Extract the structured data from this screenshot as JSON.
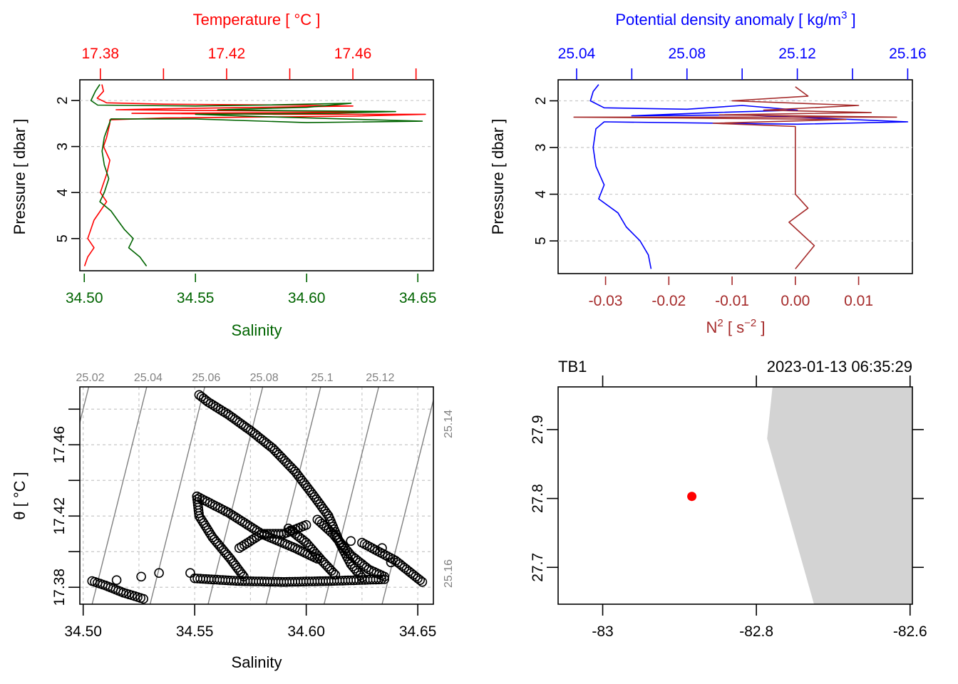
{
  "chart_data": [
    {
      "id": "profile-ts",
      "type": "line",
      "y_axis": {
        "label": "Pressure [ dbar ]",
        "ticks": [
          "2",
          "3",
          "4",
          "5"
        ],
        "range": [
          5.7,
          1.55
        ],
        "reversed": true
      },
      "bottom_axis": {
        "label": "Salinity",
        "ticks": [
          "34.50",
          "34.55",
          "34.60",
          "34.65"
        ],
        "range": [
          34.498,
          34.657
        ],
        "color": "#006400"
      },
      "top_axis": {
        "label": "Temperature [ °C ]",
        "ticks": [
          "17.38",
          "",
          "17.42",
          "",
          "17.46",
          ""
        ],
        "tick_values": [
          17.38,
          17.4,
          17.42,
          17.44,
          17.46,
          17.48
        ],
        "range": [
          17.3735,
          17.4855
        ],
        "color": "#ff0000"
      },
      "grid": "horizontal-dashed",
      "series": [
        {
          "name": "Temperature",
          "color": "#ff0000",
          "axis": "top",
          "points": [
            [
              17.3805,
              1.65
            ],
            [
              17.381,
              1.8
            ],
            [
              17.379,
              1.95
            ],
            [
              17.382,
              2.05
            ],
            [
              17.4,
              2.08
            ],
            [
              17.44,
              2.1
            ],
            [
              17.46,
              2.12
            ],
            [
              17.43,
              2.15
            ],
            [
              17.4,
              2.18
            ],
            [
              17.385,
              2.2
            ],
            [
              17.42,
              2.22
            ],
            [
              17.47,
              2.24
            ],
            [
              17.445,
              2.26
            ],
            [
              17.39,
              2.28
            ],
            [
              17.435,
              2.3
            ],
            [
              17.483,
              2.3
            ],
            [
              17.46,
              2.34
            ],
            [
              17.4,
              2.38
            ],
            [
              17.383,
              2.42
            ],
            [
              17.383,
              2.5
            ],
            [
              17.382,
              2.8
            ],
            [
              17.381,
              3.0
            ],
            [
              17.383,
              3.3
            ],
            [
              17.382,
              3.6
            ],
            [
              17.381,
              3.8
            ],
            [
              17.38,
              4.0
            ],
            [
              17.382,
              4.2
            ],
            [
              17.38,
              4.4
            ],
            [
              17.378,
              4.6
            ],
            [
              17.377,
              4.8
            ],
            [
              17.376,
              5.0
            ],
            [
              17.378,
              5.2
            ],
            [
              17.376,
              5.4
            ],
            [
              17.375,
              5.6
            ]
          ]
        },
        {
          "name": "Salinity",
          "color": "#006400",
          "axis": "bottom",
          "points": [
            [
              34.507,
              1.65
            ],
            [
              34.505,
              1.8
            ],
            [
              34.503,
              2.0
            ],
            [
              34.506,
              2.1
            ],
            [
              34.55,
              2.12
            ],
            [
              34.58,
              2.1
            ],
            [
              34.62,
              2.06
            ],
            [
              34.6,
              2.15
            ],
            [
              34.56,
              2.2
            ],
            [
              34.59,
              2.22
            ],
            [
              34.64,
              2.24
            ],
            [
              34.61,
              2.28
            ],
            [
              34.55,
              2.3
            ],
            [
              34.58,
              2.35
            ],
            [
              34.652,
              2.45
            ],
            [
              34.6,
              2.48
            ],
            [
              34.55,
              2.4
            ],
            [
              34.512,
              2.4
            ],
            [
              34.509,
              2.8
            ],
            [
              34.508,
              3.1
            ],
            [
              34.509,
              3.4
            ],
            [
              34.511,
              3.7
            ],
            [
              34.509,
              4.0
            ],
            [
              34.507,
              4.2
            ],
            [
              34.512,
              4.4
            ],
            [
              34.515,
              4.6
            ],
            [
              34.518,
              4.8
            ],
            [
              34.522,
              5.0
            ],
            [
              34.52,
              5.2
            ],
            [
              34.525,
              5.4
            ],
            [
              34.528,
              5.6
            ]
          ]
        }
      ]
    },
    {
      "id": "profile-density",
      "type": "line",
      "y_axis": {
        "label": "Pressure [ dbar ]",
        "ticks": [
          "2",
          "3",
          "4",
          "5"
        ],
        "range": [
          5.7,
          1.55
        ],
        "reversed": true
      },
      "top_axis": {
        "label": "Potential density anomaly [ kg/m³ ]",
        "label_main": "Potential density anomaly [ kg/m",
        "label_sup": "3",
        "label_end": " ]",
        "ticks": [
          "25.04",
          "",
          "25.08",
          "",
          "25.12",
          "",
          "25.16"
        ],
        "tick_values": [
          25.04,
          25.06,
          25.08,
          25.1,
          25.12,
          25.14,
          25.16
        ],
        "range": [
          25.0333,
          25.1617
        ],
        "color": "#0000ff"
      },
      "bottom_axis": {
        "label": "N² [ s⁻² ]",
        "label_main": "N",
        "label_sup": "2",
        "label_mid": " [ s",
        "label_sup2": "−2",
        "label_end": " ]",
        "ticks": [
          "-0.03",
          "-0.02",
          "-0.01",
          "0.00",
          "0.01"
        ],
        "tick_values": [
          -0.03,
          -0.02,
          -0.01,
          0.0,
          0.01
        ],
        "range": [
          -0.0375,
          0.0185
        ],
        "color": "#a52a2a"
      },
      "grid": "horizontal-dashed",
      "series": [
        {
          "name": "Potential density anomaly",
          "color": "#0000ff",
          "axis": "top",
          "points": [
            [
              25.048,
              1.65
            ],
            [
              25.046,
              1.8
            ],
            [
              25.045,
              2.0
            ],
            [
              25.05,
              2.15
            ],
            [
              25.08,
              2.18
            ],
            [
              25.1,
              2.1
            ],
            [
              25.12,
              2.2
            ],
            [
              25.09,
              2.25
            ],
            [
              25.06,
              2.32
            ],
            [
              25.1,
              2.3
            ],
            [
              25.16,
              2.45
            ],
            [
              25.12,
              2.5
            ],
            [
              25.05,
              2.45
            ],
            [
              25.047,
              2.6
            ],
            [
              25.046,
              3.0
            ],
            [
              25.047,
              3.4
            ],
            [
              25.05,
              3.8
            ],
            [
              25.048,
              4.1
            ],
            [
              25.055,
              4.4
            ],
            [
              25.058,
              4.7
            ],
            [
              25.063,
              5.0
            ],
            [
              25.066,
              5.3
            ],
            [
              25.067,
              5.6
            ]
          ]
        },
        {
          "name": "N²",
          "color": "#a52a2a",
          "axis": "bottom",
          "points": [
            [
              0.0,
              1.7
            ],
            [
              0.002,
              1.9
            ],
            [
              -0.01,
              2.0
            ],
            [
              0.01,
              2.1
            ],
            [
              -0.005,
              2.2
            ],
            [
              0.012,
              2.25
            ],
            [
              -0.012,
              2.3
            ],
            [
              0.016,
              2.35
            ],
            [
              -0.035,
              2.35
            ],
            [
              0.008,
              2.4
            ],
            [
              -0.013,
              2.48
            ],
            [
              0.0,
              2.55
            ],
            [
              0.0,
              3.0
            ],
            [
              0.0,
              3.5
            ],
            [
              0.0,
              4.0
            ],
            [
              0.002,
              4.3
            ],
            [
              -0.001,
              4.6
            ],
            [
              0.003,
              5.1
            ],
            [
              0.0,
              5.6
            ]
          ]
        }
      ]
    },
    {
      "id": "ts-diagram",
      "type": "scatter",
      "x_axis": {
        "label": "Salinity",
        "ticks": [
          "34.50",
          "34.55",
          "34.60",
          "34.65"
        ],
        "tick_values": [
          34.5,
          34.55,
          34.6,
          34.65
        ],
        "range": [
          34.4985,
          34.657
        ]
      },
      "y_axis": {
        "label": "θ [ °C ]",
        "ticks": [
          "17.38",
          "",
          "17.42",
          "",
          "17.46",
          ""
        ],
        "tick_values": [
          17.38,
          17.4,
          17.42,
          17.44,
          17.46,
          17.48
        ],
        "range": [
          17.3705,
          17.4925
        ]
      },
      "isopycnal_labels_top": [
        "25.02",
        "25.04",
        "25.06",
        "25.08",
        "25.1",
        "25.12"
      ],
      "isopycnal_labels_right": [
        "25.14",
        "25.16"
      ],
      "isopycnal_color": "#808080",
      "grid": "dashed",
      "series": [
        {
          "name": "θ-S",
          "color": "#000000",
          "marker": "open-circle",
          "segments": [
            [
              [
                34.504,
                17.3835
              ],
              [
                34.51,
                17.381
              ],
              [
                34.518,
                17.377
              ],
              [
                34.527,
                17.3735
              ]
            ],
            [
              [
                34.552,
                17.488
              ],
              [
                34.556,
                17.484
              ],
              [
                34.565,
                17.477
              ],
              [
                34.575,
                17.468
              ],
              [
                34.585,
                17.458
              ],
              [
                34.595,
                17.445
              ],
              [
                34.603,
                17.432
              ],
              [
                34.61,
                17.42
              ],
              [
                34.615,
                17.405
              ],
              [
                34.62,
                17.393
              ],
              [
                34.625,
                17.3855
              ]
            ],
            [
              [
                34.551,
                17.431
              ],
              [
                34.552,
                17.42
              ],
              [
                34.558,
                17.408
              ],
              [
                34.566,
                17.396
              ],
              [
                34.572,
                17.386
              ]
            ],
            [
              [
                34.551,
                17.431
              ],
              [
                34.565,
                17.422
              ],
              [
                34.58,
                17.41
              ],
              [
                34.595,
                17.402
              ],
              [
                34.605,
                17.396
              ]
            ],
            [
              [
                34.55,
                17.385
              ],
              [
                34.57,
                17.3835
              ],
              [
                34.59,
                17.383
              ],
              [
                34.61,
                17.3835
              ],
              [
                34.635,
                17.3845
              ]
            ],
            [
              [
                34.605,
                17.418
              ],
              [
                34.612,
                17.41
              ],
              [
                34.62,
                17.398
              ],
              [
                34.628,
                17.39
              ],
              [
                34.635,
                17.386
              ]
            ],
            [
              [
                34.592,
                17.413
              ],
              [
                34.6,
                17.405
              ],
              [
                34.607,
                17.395
              ],
              [
                34.613,
                17.387
              ]
            ],
            [
              [
                34.625,
                17.405
              ],
              [
                34.64,
                17.395
              ],
              [
                34.652,
                17.383
              ]
            ],
            [
              [
                34.57,
                17.402
              ],
              [
                34.58,
                17.41
              ],
              [
                34.59,
                17.41
              ],
              [
                34.6,
                17.415
              ]
            ]
          ],
          "isolated": [
            [
              34.515,
              17.384
            ],
            [
              34.526,
              17.386
            ],
            [
              34.534,
              17.388
            ],
            [
              34.548,
              17.388
            ],
            [
              34.634,
              17.402
            ],
            [
              34.62,
              17.406
            ],
            [
              34.638,
              17.394
            ]
          ]
        }
      ]
    },
    {
      "id": "station-map",
      "type": "scatter",
      "title_left": "TB1",
      "title_right": "2023-01-13 06:35:29",
      "x_axis": {
        "label": "",
        "ticks": [
          "-83",
          "-82.8",
          "-82.6"
        ],
        "tick_values": [
          -83.0,
          -82.8,
          -82.6
        ],
        "range": [
          -83.058,
          -82.597
        ]
      },
      "y_axis": {
        "label": "",
        "ticks": [
          "27.7",
          "27.8",
          "27.9"
        ],
        "tick_values": [
          27.7,
          27.8,
          27.9
        ],
        "range": [
          27.6465,
          27.962
        ]
      },
      "land_color": "#d3d3d3",
      "land_polygon": [
        [
          -82.779,
          27.962
        ],
        [
          -82.786,
          27.887
        ],
        [
          -82.725,
          27.6465
        ],
        [
          -82.597,
          27.6465
        ],
        [
          -82.597,
          27.962
        ]
      ],
      "station": {
        "lon": -82.884,
        "lat": 27.803,
        "color": "#ff0000"
      }
    }
  ]
}
